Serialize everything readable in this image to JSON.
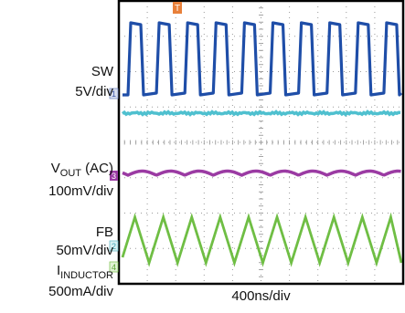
{
  "channel_labels": [
    {
      "name": "SW",
      "scale": "5V/div"
    },
    {
      "name_main": "V",
      "name_sub": "OUT",
      "name_suffix": " (AC)",
      "scale": "100mV/div"
    },
    {
      "name": "FB",
      "scale": "50mV/div"
    },
    {
      "name_main": "I",
      "name_sub": "INDUCTOR",
      "scale": "500mA/div"
    }
  ],
  "marker_labels": [
    "1",
    "3",
    "2",
    "4"
  ],
  "trigger_marker": "T",
  "colors": {
    "sw": "#1f4ea8",
    "fb": "#4fc0cf",
    "vout": "#9b3ba3",
    "inductor": "#6fbe44",
    "frame": "#000000",
    "grid": "#9a9a9a"
  },
  "chart_data": {
    "type": "line",
    "xlabel": "400ns/div",
    "grid": {
      "divisions_x": 10,
      "divisions_y": 8,
      "visible": true
    },
    "series": [
      {
        "waveform": "square",
        "cycles": 10
      },
      {
        "waveform": "flat-noisy"
      },
      {
        "waveform": "scalloped",
        "cycles": 10
      },
      {
        "waveform": "triangle",
        "cycles": 10
      }
    ]
  }
}
